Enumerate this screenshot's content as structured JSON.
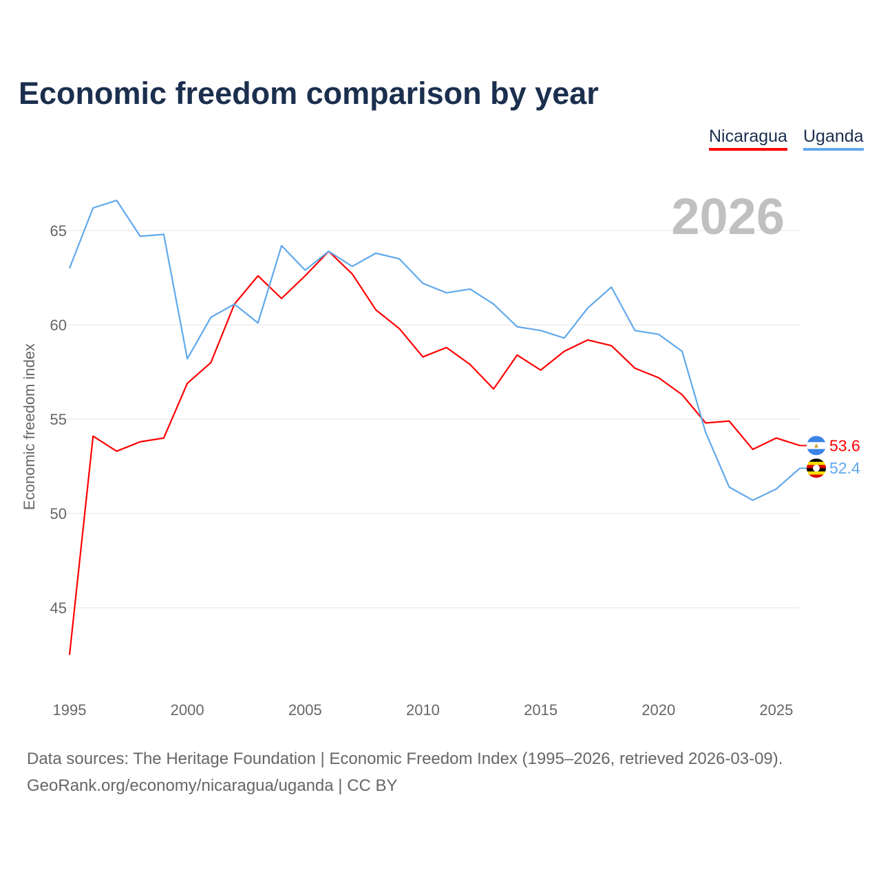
{
  "title": "Economic freedom comparison by year",
  "footer": {
    "sources": "Data sources: The Heritage Foundation | Economic Freedom Index (1995–2026, retrieved 2026-03-09).",
    "credit": "GeoRank.org/economy/nicaragua/uganda | CC BY"
  },
  "chart_data": {
    "type": "line",
    "title": "Economic freedom comparison by year",
    "year_label": "2026",
    "xlabel": "",
    "ylabel": "Economic freedom index",
    "x": [
      1995,
      1996,
      1997,
      1998,
      1999,
      2000,
      2001,
      2002,
      2003,
      2004,
      2005,
      2006,
      2007,
      2008,
      2009,
      2010,
      2011,
      2012,
      2013,
      2014,
      2015,
      2016,
      2017,
      2018,
      2019,
      2020,
      2021,
      2022,
      2023,
      2024,
      2025,
      2026
    ],
    "xticks": [
      1995,
      2000,
      2005,
      2010,
      2015,
      2020,
      2025
    ],
    "yticks": [
      45,
      50,
      55,
      60,
      65
    ],
    "ylim": [
      41.7,
      67.5
    ],
    "xlim": [
      1995,
      2026
    ],
    "grid": true,
    "legend_position": "top-right",
    "series": [
      {
        "name": "Nicaragua",
        "color": "#ff0000",
        "end_label": "53.6",
        "flag": "nicaragua-flag",
        "values": [
          42.5,
          54.1,
          53.3,
          53.8,
          54.0,
          56.9,
          58.0,
          61.1,
          62.6,
          61.4,
          62.6,
          63.9,
          62.7,
          60.8,
          59.8,
          58.3,
          58.8,
          57.9,
          56.6,
          58.4,
          57.6,
          58.6,
          59.2,
          58.9,
          57.7,
          57.2,
          56.3,
          54.8,
          54.9,
          53.4,
          54.0,
          53.6
        ]
      },
      {
        "name": "Uganda",
        "color": "#60a8ec",
        "end_label": "52.4",
        "flag": "uganda-flag",
        "values": [
          63.0,
          66.2,
          66.6,
          64.7,
          64.8,
          58.2,
          60.4,
          61.1,
          60.1,
          64.2,
          62.9,
          63.9,
          63.1,
          63.8,
          63.5,
          62.2,
          61.7,
          61.9,
          61.1,
          59.9,
          59.7,
          59.3,
          60.9,
          62.0,
          59.7,
          59.5,
          58.6,
          54.3,
          51.4,
          50.7,
          51.3,
          52.4
        ]
      }
    ]
  }
}
